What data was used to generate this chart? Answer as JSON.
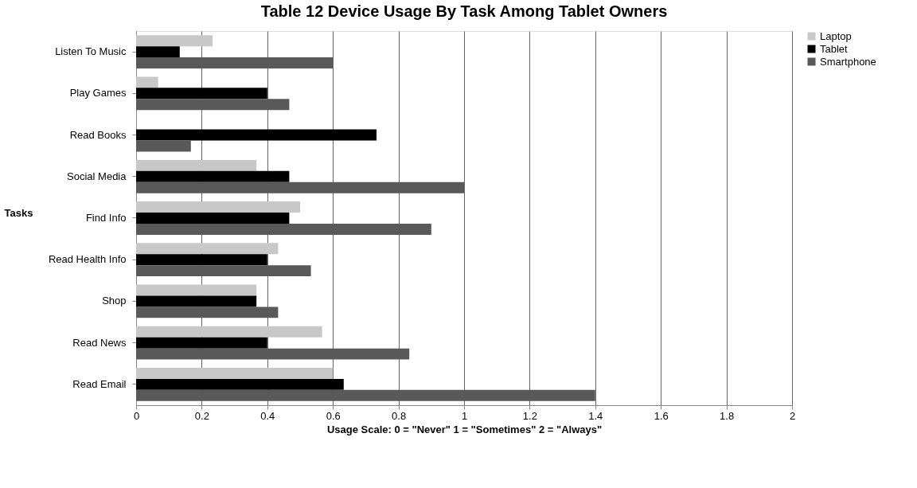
{
  "chart_data": {
    "type": "bar",
    "orientation": "horizontal",
    "title": "Table 12 Device Usage By Task Among Tablet Owners",
    "xlabel": "Usage Scale: 0 = \"Never\"  1 = \"Sometimes\"  2 = \"Always\"",
    "ylabel": "Tasks",
    "categories": [
      "Listen To Music",
      "Play Games",
      "Read Books",
      "Social Media",
      "Find Info",
      "Read Health Info",
      "Shop",
      "Read News",
      "Read Email"
    ],
    "series": [
      {
        "name": "Laptop",
        "color": "#c8c8c8",
        "values": [
          0.233,
          0.067,
          0,
          0.367,
          0.5,
          0.433,
          0.367,
          0.567,
          0.6
        ]
      },
      {
        "name": "Tablet",
        "color": "#000000",
        "values": [
          0.133,
          0.4,
          0.733,
          0.467,
          0.467,
          0.4,
          0.367,
          0.4,
          0.633
        ]
      },
      {
        "name": "Smartphone",
        "color": "#595959",
        "values": [
          0.6,
          0.467,
          0.167,
          1.0,
          0.9,
          0.533,
          0.433,
          0.833,
          1.4
        ]
      }
    ],
    "xlim": [
      0,
      2
    ],
    "xticks": [
      0,
      0.2,
      0.4,
      0.6,
      0.8,
      1,
      1.2,
      1.4,
      1.6,
      1.8,
      2
    ],
    "grid": "x",
    "legend": "right"
  }
}
